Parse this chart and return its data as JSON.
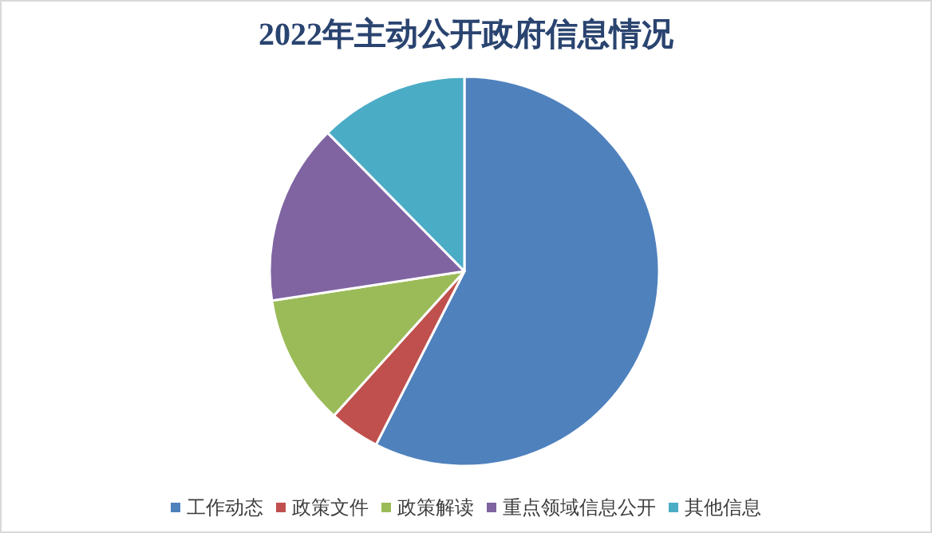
{
  "chart_data": {
    "type": "pie",
    "title": "2022年主动公开政府信息情况",
    "categories": [
      "工作动态",
      "政策文件",
      "政策解读",
      "重点领域信息公开",
      "其他信息"
    ],
    "values": [
      57.5,
      4.2,
      10.9,
      15.0,
      12.4
    ],
    "colors": [
      "#4f81bd",
      "#c0504d",
      "#9bbb59",
      "#8064a2",
      "#4bacc6"
    ],
    "legend": "bottom"
  }
}
